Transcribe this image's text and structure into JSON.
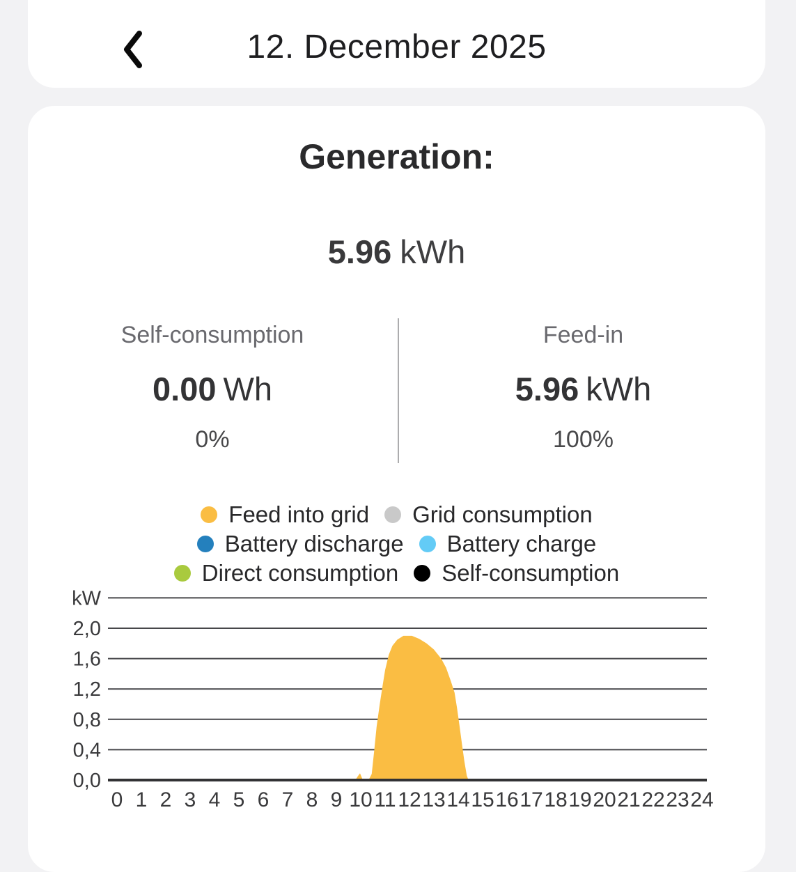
{
  "header": {
    "title": "12. December 2025",
    "back_icon": "chevron-left"
  },
  "generation": {
    "heading": "Generation:",
    "total_value": "5.96",
    "total_unit": "kWh"
  },
  "stats": {
    "self_consumption": {
      "label": "Self-consumption",
      "value": "0.00",
      "unit": "Wh",
      "percent": "0%"
    },
    "feed_in": {
      "label": "Feed-in",
      "value": "5.96",
      "unit": "kWh",
      "percent": "100%"
    }
  },
  "legend": {
    "rows": [
      [
        {
          "label": "Feed into grid",
          "color": "#FABD43"
        },
        {
          "label": "Grid consumption",
          "color": "#C9C9C9"
        }
      ],
      [
        {
          "label": "Battery discharge",
          "color": "#2480BD"
        },
        {
          "label": "Battery charge",
          "color": "#63CBF6"
        }
      ],
      [
        {
          "label": "Direct consumption",
          "color": "#A9CA3E"
        },
        {
          "label": "Self-consumption",
          "color": "#000000"
        }
      ]
    ]
  },
  "chart_data": {
    "type": "area",
    "ylabel": "kW",
    "xlim": [
      0,
      24
    ],
    "ylim": [
      0,
      2.4
    ],
    "grid": true,
    "x_ticks": [
      0,
      1,
      2,
      3,
      4,
      5,
      6,
      7,
      8,
      9,
      10,
      11,
      12,
      13,
      14,
      15,
      16,
      17,
      18,
      19,
      20,
      21,
      22,
      23,
      24
    ],
    "y_ticks": [
      {
        "label": "2,0",
        "value": 2.0
      },
      {
        "label": "1,6",
        "value": 1.6
      },
      {
        "label": "1,2",
        "value": 1.2
      },
      {
        "label": "0,8",
        "value": 0.8
      },
      {
        "label": "0,4",
        "value": 0.4
      },
      {
        "label": "0,0",
        "value": 0.0
      }
    ],
    "gridline_values": [
      2.4,
      2.0,
      1.6,
      1.2,
      0.8,
      0.4
    ],
    "series": [
      {
        "name": "Feed into grid",
        "color": "#FABD43",
        "points_hour_kw": [
          [
            0,
            0
          ],
          [
            9.78,
            0
          ],
          [
            9.88,
            0.05
          ],
          [
            9.97,
            0.09
          ],
          [
            10.06,
            0.02
          ],
          [
            10.12,
            0
          ],
          [
            10.32,
            0
          ],
          [
            10.45,
            0.08
          ],
          [
            10.55,
            0.38
          ],
          [
            10.65,
            0.7
          ],
          [
            10.78,
            1.0
          ],
          [
            10.9,
            1.25
          ],
          [
            11.0,
            1.45
          ],
          [
            11.15,
            1.65
          ],
          [
            11.3,
            1.77
          ],
          [
            11.5,
            1.85
          ],
          [
            11.75,
            1.9
          ],
          [
            12.1,
            1.9
          ],
          [
            12.4,
            1.86
          ],
          [
            12.7,
            1.8
          ],
          [
            13.0,
            1.72
          ],
          [
            13.3,
            1.6
          ],
          [
            13.5,
            1.48
          ],
          [
            13.7,
            1.3
          ],
          [
            13.85,
            1.15
          ],
          [
            13.95,
            0.95
          ],
          [
            14.05,
            0.72
          ],
          [
            14.15,
            0.48
          ],
          [
            14.25,
            0.25
          ],
          [
            14.35,
            0.06
          ],
          [
            14.42,
            0
          ],
          [
            24,
            0
          ]
        ]
      }
    ]
  }
}
